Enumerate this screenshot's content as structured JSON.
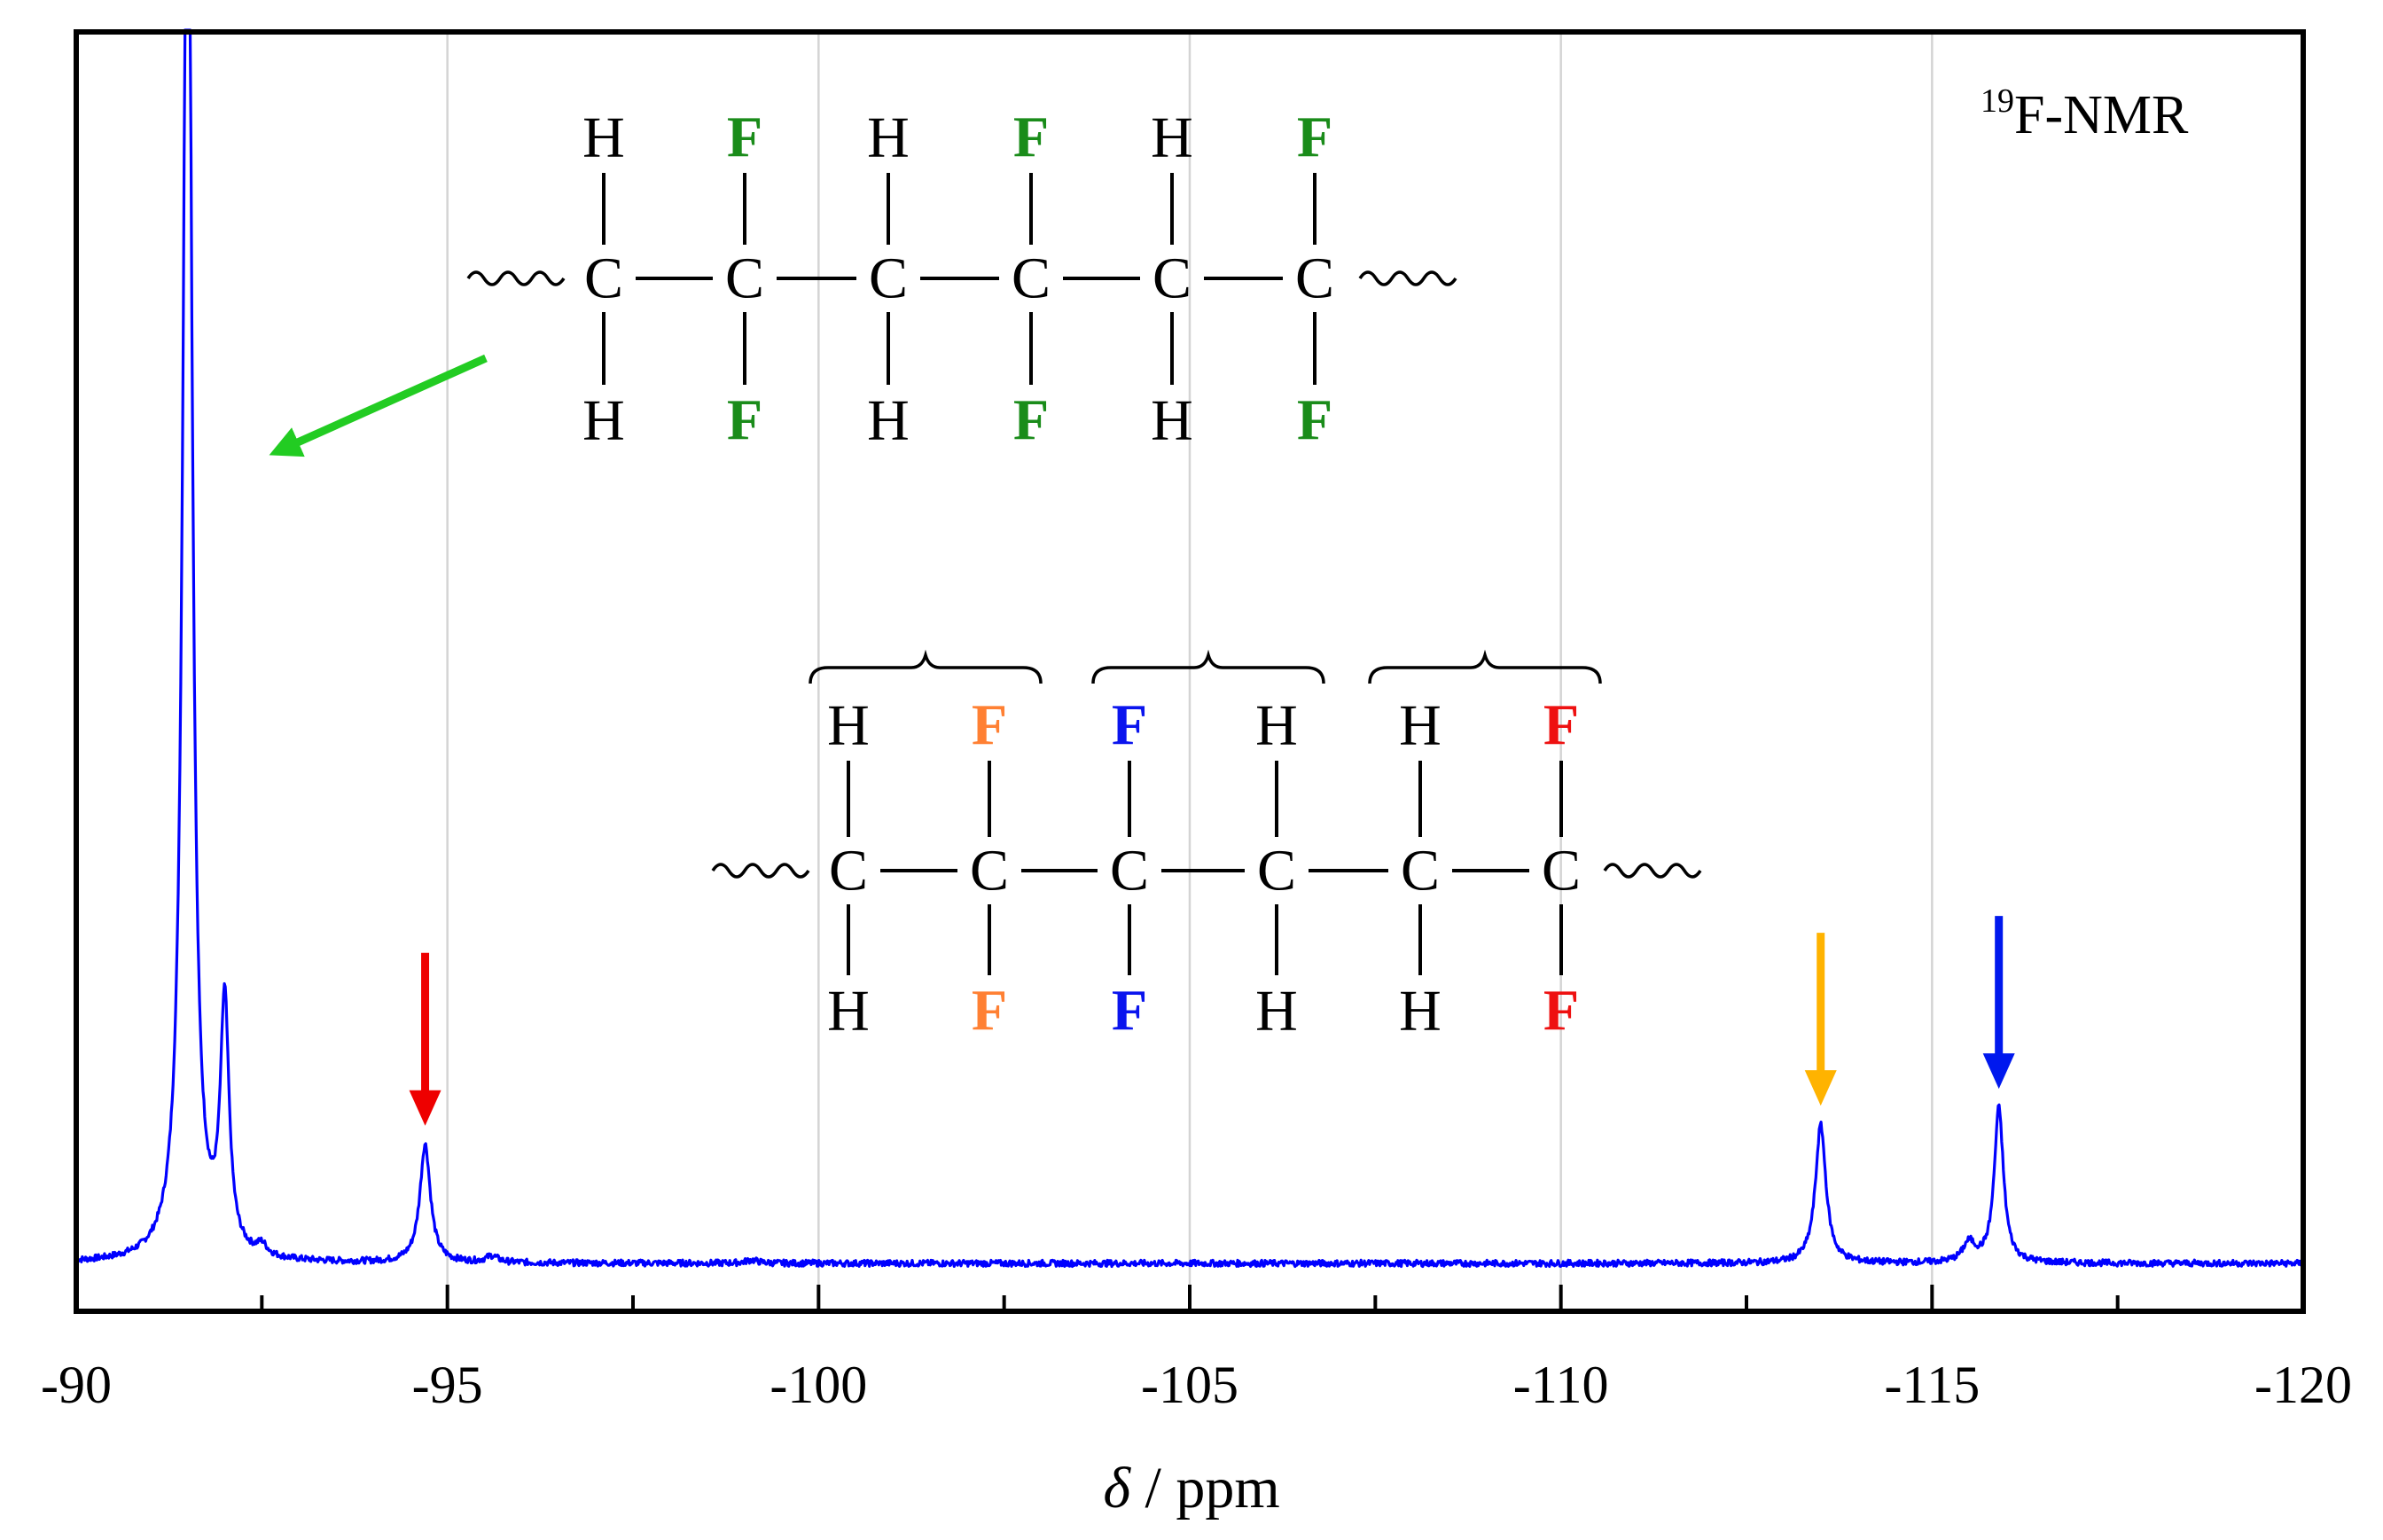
{
  "colors": {
    "spectrum": "#0000ff",
    "arrow_green": "#22cc22",
    "arrow_red": "#ee0000",
    "arrow_orange": "#ffb300",
    "arrow_blue": "#0018ee",
    "f_green": "#1a8c1a",
    "f_orange": "#ff8033",
    "f_blue": "#0a14ee",
    "f_red": "#ee1111",
    "grid": "#d4d4d4"
  },
  "chart_data": {
    "type": "line",
    "title": "",
    "annotation": {
      "sup": "19",
      "text": "F-NMR"
    },
    "xlabel": {
      "symbol": "δ",
      "unit": " / ppm"
    },
    "ylabel": "",
    "xlim": [
      -90,
      -120
    ],
    "ylim": [
      0,
      1
    ],
    "x_ticks": [
      -90,
      -95,
      -100,
      -105,
      -110,
      -115,
      -120
    ],
    "x_tick_labels": [
      "-90",
      "-95",
      "-100",
      "-105",
      "-110",
      "-115",
      "-120"
    ],
    "vertical_grid": [
      -95,
      -100,
      -105,
      -110,
      -115
    ],
    "series": [
      {
        "peaks": [
          {
            "x": -91.5,
            "height": 1.5,
            "width": 0.07
          },
          {
            "x": -92.0,
            "height": 0.235,
            "width": 0.07
          },
          {
            "x": -92.5,
            "height": 0.01,
            "width": 0.08
          },
          {
            "x": -94.7,
            "height": 0.112,
            "width": 0.085
          },
          {
            "x": -95.6,
            "height": 0.006,
            "width": 0.1
          },
          {
            "x": -99.1,
            "height": 0.003,
            "width": 0.1
          },
          {
            "x": -113.5,
            "height": 0.131,
            "width": 0.085
          },
          {
            "x": -115.5,
            "height": 0.018,
            "width": 0.1
          },
          {
            "x": -115.9,
            "height": 0.147,
            "width": 0.075
          }
        ]
      }
    ]
  },
  "markers": [
    {
      "name": "red-peak-arrow",
      "x": -94.7,
      "color_key": "arrow_red"
    },
    {
      "name": "orange-peak-arrow",
      "x": -113.5,
      "color_key": "arrow_orange"
    },
    {
      "name": "blue-peak-arrow",
      "x": -115.9,
      "color_key": "arrow_blue"
    }
  ],
  "structure_top": {
    "top": [
      "H",
      "F",
      "H",
      "F",
      "H",
      "F"
    ],
    "middle": [
      "C",
      "C",
      "C",
      "C",
      "C",
      "C"
    ],
    "bottom": [
      "H",
      "F",
      "H",
      "F",
      "H",
      "F"
    ],
    "colors": [
      "black",
      "f_green",
      "black",
      "f_green",
      "black",
      "f_green"
    ]
  },
  "structure_bottom": {
    "top": [
      "H",
      "F",
      "F",
      "H",
      "H",
      "F"
    ],
    "middle": [
      "C",
      "C",
      "C",
      "C",
      "C",
      "C"
    ],
    "bottom": [
      "H",
      "F",
      "F",
      "H",
      "H",
      "F"
    ],
    "colors": [
      "black",
      "f_orange",
      "f_blue",
      "black",
      "black",
      "f_red"
    ]
  }
}
